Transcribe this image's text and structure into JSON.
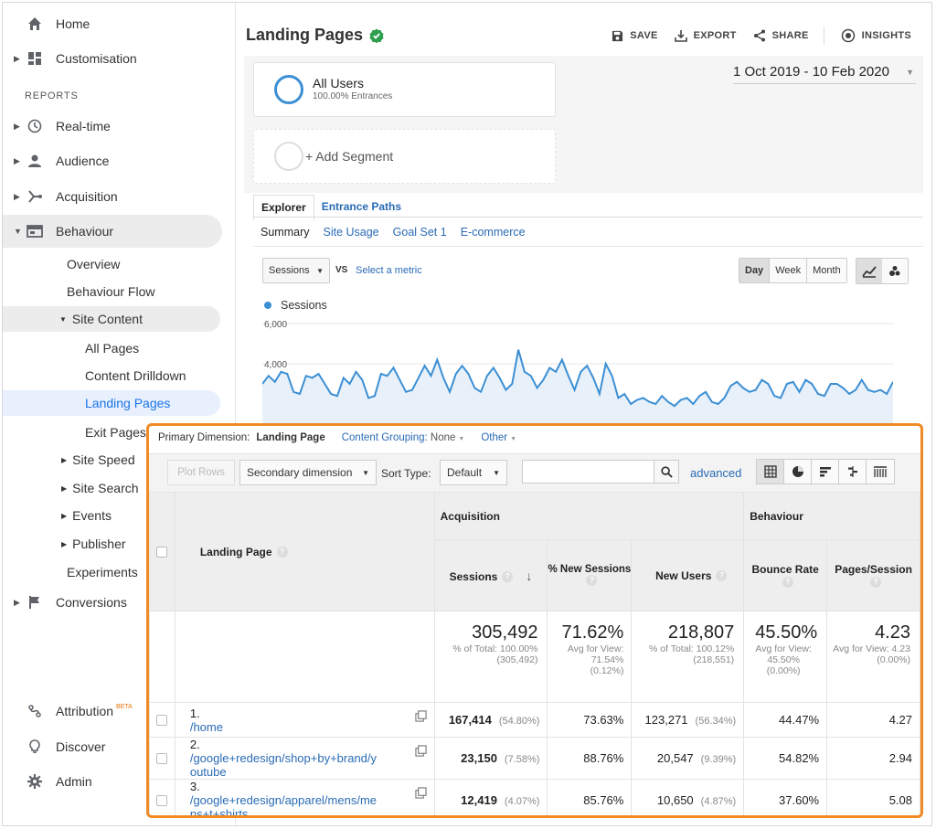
{
  "sidebar": {
    "home": "Home",
    "customisation": "Customisation",
    "reports_header": "REPORTS",
    "realtime": "Real-time",
    "audience": "Audience",
    "acquisition": "Acquisition",
    "behaviour": "Behaviour",
    "overview": "Overview",
    "behaviour_flow": "Behaviour Flow",
    "site_content": "Site Content",
    "all_pages": "All Pages",
    "content_drilldown": "Content Drilldown",
    "landing_pages": "Landing Pages",
    "exit_pages": "Exit Pages",
    "site_speed": "Site Speed",
    "site_search": "Site Search",
    "events": "Events",
    "publisher": "Publisher",
    "experiments": "Experiments",
    "conversions": "Conversions",
    "attribution": "Attribution",
    "attribution_badge": "BETA",
    "discover": "Discover",
    "admin": "Admin"
  },
  "header": {
    "title": "Landing Pages",
    "save": "SAVE",
    "export": "EXPORT",
    "share": "SHARE",
    "insights": "INSIGHTS"
  },
  "segments": {
    "seg1_name": "All Users",
    "seg1_sub": "100.00% Entrances",
    "add_segment": "+ Add Segment",
    "date_range": "1 Oct 2019 - 10 Feb 2020"
  },
  "tabs": {
    "explorer": "Explorer",
    "entrance_paths": "Entrance Paths"
  },
  "subtabs": {
    "summary": "Summary",
    "site_usage": "Site Usage",
    "goal_set": "Goal Set 1",
    "ecommerce": "E-commerce"
  },
  "chart_controls": {
    "metric": "Sessions",
    "vs": "VS",
    "select_metric": "Select a metric",
    "day": "Day",
    "week": "Week",
    "month": "Month"
  },
  "chart_data": {
    "type": "line",
    "series": [
      {
        "name": "Sessions",
        "color": "#3c8fd4",
        "values": [
          3000,
          3400,
          3100,
          3600,
          3500,
          2600,
          2500,
          3400,
          3300,
          3500,
          3000,
          2500,
          2400,
          3300,
          3000,
          3600,
          3200,
          2300,
          2400,
          3500,
          3400,
          3800,
          3200,
          2600,
          2700,
          3300,
          3900,
          3400,
          4200,
          3300,
          2600,
          3500,
          3900,
          3500,
          2800,
          2600,
          3400,
          3800,
          3300,
          2700,
          3000,
          4700,
          3600,
          3400,
          2800,
          3200,
          3800,
          3600,
          4200,
          3400,
          2700,
          3600,
          3900,
          3300,
          2500,
          4000,
          3400,
          2300,
          2500,
          2000,
          2200,
          2300,
          2100,
          2000,
          2400,
          2100,
          1900,
          2200,
          2300,
          2000,
          2400,
          2600,
          2100,
          2000,
          2300,
          2900,
          3100,
          2800,
          2600,
          2700,
          3200,
          3000,
          2400,
          2300,
          3000,
          3100,
          2600,
          3200,
          3000,
          2500,
          2400,
          3000,
          3000,
          2800,
          2500,
          2700,
          3200,
          2700,
          2600,
          2700,
          2500,
          3100
        ]
      }
    ],
    "yticks": [
      "2,000",
      "4,000",
      "6,000"
    ],
    "ylim": [
      0,
      6000
    ]
  },
  "table": {
    "primary_dimension_label": "Primary Dimension:",
    "primary_dimension": "Landing Page",
    "content_grouping_label": "Content Grouping:",
    "content_grouping_value": "None",
    "other": "Other",
    "plot_rows": "Plot Rows",
    "secondary_dimension": "Secondary dimension",
    "sort_type_label": "Sort Type:",
    "sort_type": "Default",
    "search_value": "",
    "advanced": "advanced",
    "group_acquisition": "Acquisition",
    "group_behaviour": "Behaviour",
    "col_landing": "Landing Page",
    "col_sessions": "Sessions",
    "col_new_sessions": "% New Sessions",
    "col_new_users": "New Users",
    "col_bounce": "Bounce Rate",
    "col_pps": "Pages/Session",
    "totals": {
      "sessions": "305,492",
      "sessions_sub": "% of Total: 100.00% (305,492)",
      "new_sessions": "71.62%",
      "new_sessions_sub": "Avg for View: 71.54% (0.12%)",
      "new_users": "218,807",
      "new_users_sub": "% of Total: 100.12% (218,551)",
      "bounce": "45.50%",
      "bounce_sub": "Avg for View: 45.50% (0.00%)",
      "pps": "4.23",
      "pps_sub": "Avg for View: 4.23 (0.00%)"
    },
    "rows": [
      {
        "idx": "1.",
        "page": "/home",
        "sessions": "167,414",
        "sessions_pct": "(54.80%)",
        "new_sessions": "73.63%",
        "new_users": "123,271",
        "new_users_pct": "(56.34%)",
        "bounce": "44.47%",
        "pps": "4.27"
      },
      {
        "idx": "2.",
        "page": "/google+redesign/shop+by+brand/youtube",
        "sessions": "23,150",
        "sessions_pct": "(7.58%)",
        "new_sessions": "88.76%",
        "new_users": "20,547",
        "new_users_pct": "(9.39%)",
        "bounce": "54.82%",
        "pps": "2.94"
      },
      {
        "idx": "3.",
        "page": "/google+redesign/apparel/mens/mens+t+shirts",
        "sessions": "12,419",
        "sessions_pct": "(4.07%)",
        "new_sessions": "85.76%",
        "new_users": "10,650",
        "new_users_pct": "(4.87%)",
        "bounce": "37.60%",
        "pps": "5.08"
      }
    ]
  }
}
